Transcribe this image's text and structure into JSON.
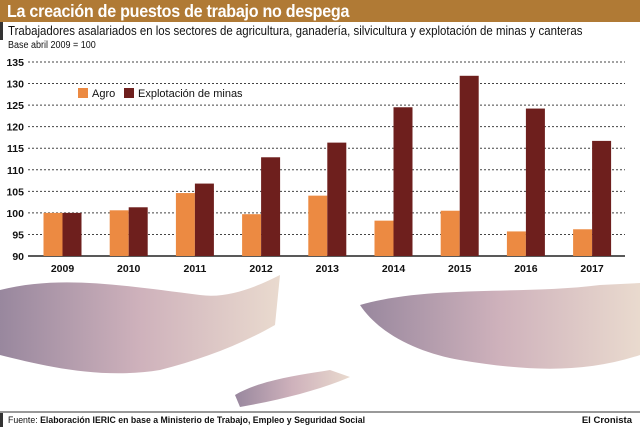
{
  "header": {
    "title": "La creación de puestos de trabajo no despega",
    "subtitle": "Trabajadores asalariados en los sectores de agricultura, ganadería, silvicultura y explotación de minas y canteras",
    "base_note": "Base abril 2009 = 100"
  },
  "footer": {
    "source_label": "Fuente:",
    "source_text": "Elaboración IERIC en base a Ministerio de Trabajo, Empleo y Seguridad Social",
    "brand": "El Cronista"
  },
  "colors": {
    "title_bar": "#b07a35",
    "agro": "#ec8a42",
    "minas": "#6e1f1d"
  },
  "chart_data": {
    "type": "bar",
    "categories": [
      "2009",
      "2010",
      "2011",
      "2012",
      "2013",
      "2014",
      "2015",
      "2016",
      "2017"
    ],
    "series": [
      {
        "name": "Agro",
        "values": [
          100,
          100.6,
          104.6,
          99.7,
          104.0,
          98.2,
          100.5,
          95.7,
          96.2
        ]
      },
      {
        "name": "Explotación de minas",
        "values": [
          100,
          101.3,
          106.8,
          112.9,
          116.3,
          124.5,
          131.8,
          124.2,
          116.7
        ]
      }
    ],
    "ylim": [
      90,
      135
    ],
    "yticks": [
      90,
      95,
      100,
      105,
      110,
      115,
      120,
      125,
      130,
      135
    ],
    "grid": true,
    "legend": "top-left"
  }
}
